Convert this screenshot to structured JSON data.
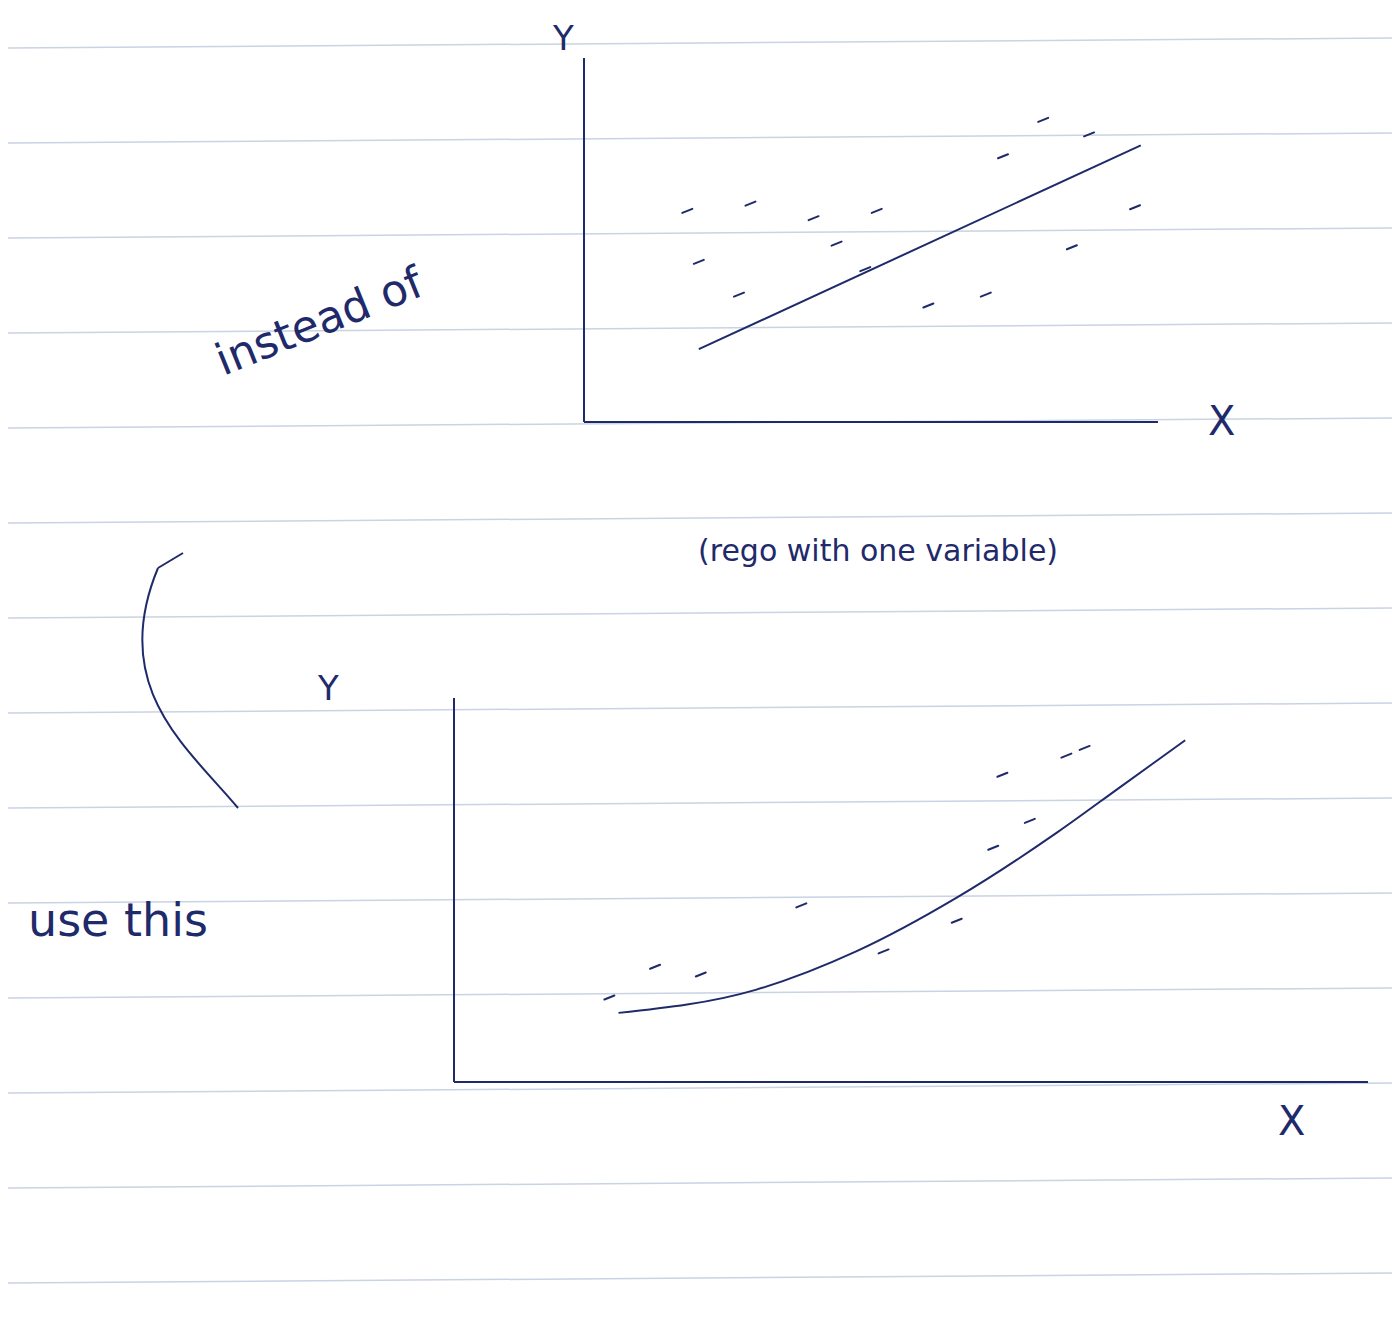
{
  "chart_data": [
    {
      "type": "scatter",
      "x_label": "X",
      "y_label": "Y",
      "annotations": [
        "instead of",
        "(rego with one variable)"
      ],
      "xlim": [
        0,
        10
      ],
      "ylim": [
        0,
        10
      ],
      "tick_labels": false,
      "grid": false,
      "color": "#1f2a6b",
      "series": [
        {
          "type": "scatter",
          "marker": "dash",
          "x": [
            1.8,
            2.9,
            4.0,
            5.1,
            7.3,
            8.0,
            8.8,
            9.6,
            8.5,
            7.0,
            6.0,
            4.9,
            2.7,
            2.0,
            4.4
          ],
          "values": [
            5.8,
            6.0,
            5.6,
            5.8,
            7.3,
            8.3,
            7.9,
            5.9,
            4.8,
            3.5,
            3.2,
            4.2,
            3.5,
            4.4,
            4.9
          ]
        },
        {
          "type": "line",
          "line_style": "solid",
          "x": [
            2.0,
            9.7
          ],
          "values": [
            2.0,
            7.6
          ]
        }
      ]
    },
    {
      "type": "scatter",
      "x_label": "X",
      "y_label": "Y",
      "annotations": [
        "use this"
      ],
      "xlim": [
        0,
        10
      ],
      "ylim": [
        0,
        10
      ],
      "tick_labels": false,
      "grid": false,
      "color": "#1f2a6b",
      "series": [
        {
          "type": "scatter",
          "marker": "dash",
          "x": [
            1.7,
            2.2,
            2.7,
            3.8,
            4.7,
            5.9,
            6.3,
            6.0,
            6.7,
            6.9,
            5.5
          ],
          "values": [
            2.2,
            3.0,
            2.8,
            4.6,
            3.4,
            6.1,
            6.8,
            8.0,
            8.5,
            8.7,
            4.2
          ]
        },
        {
          "type": "line",
          "line_style": "solid",
          "x": [
            1.8,
            3.3,
            4.4,
            5.5,
            6.6,
            7.3,
            8.0
          ],
          "values": [
            1.8,
            2.4,
            3.4,
            4.8,
            6.5,
            7.7,
            8.9
          ]
        }
      ]
    }
  ]
}
